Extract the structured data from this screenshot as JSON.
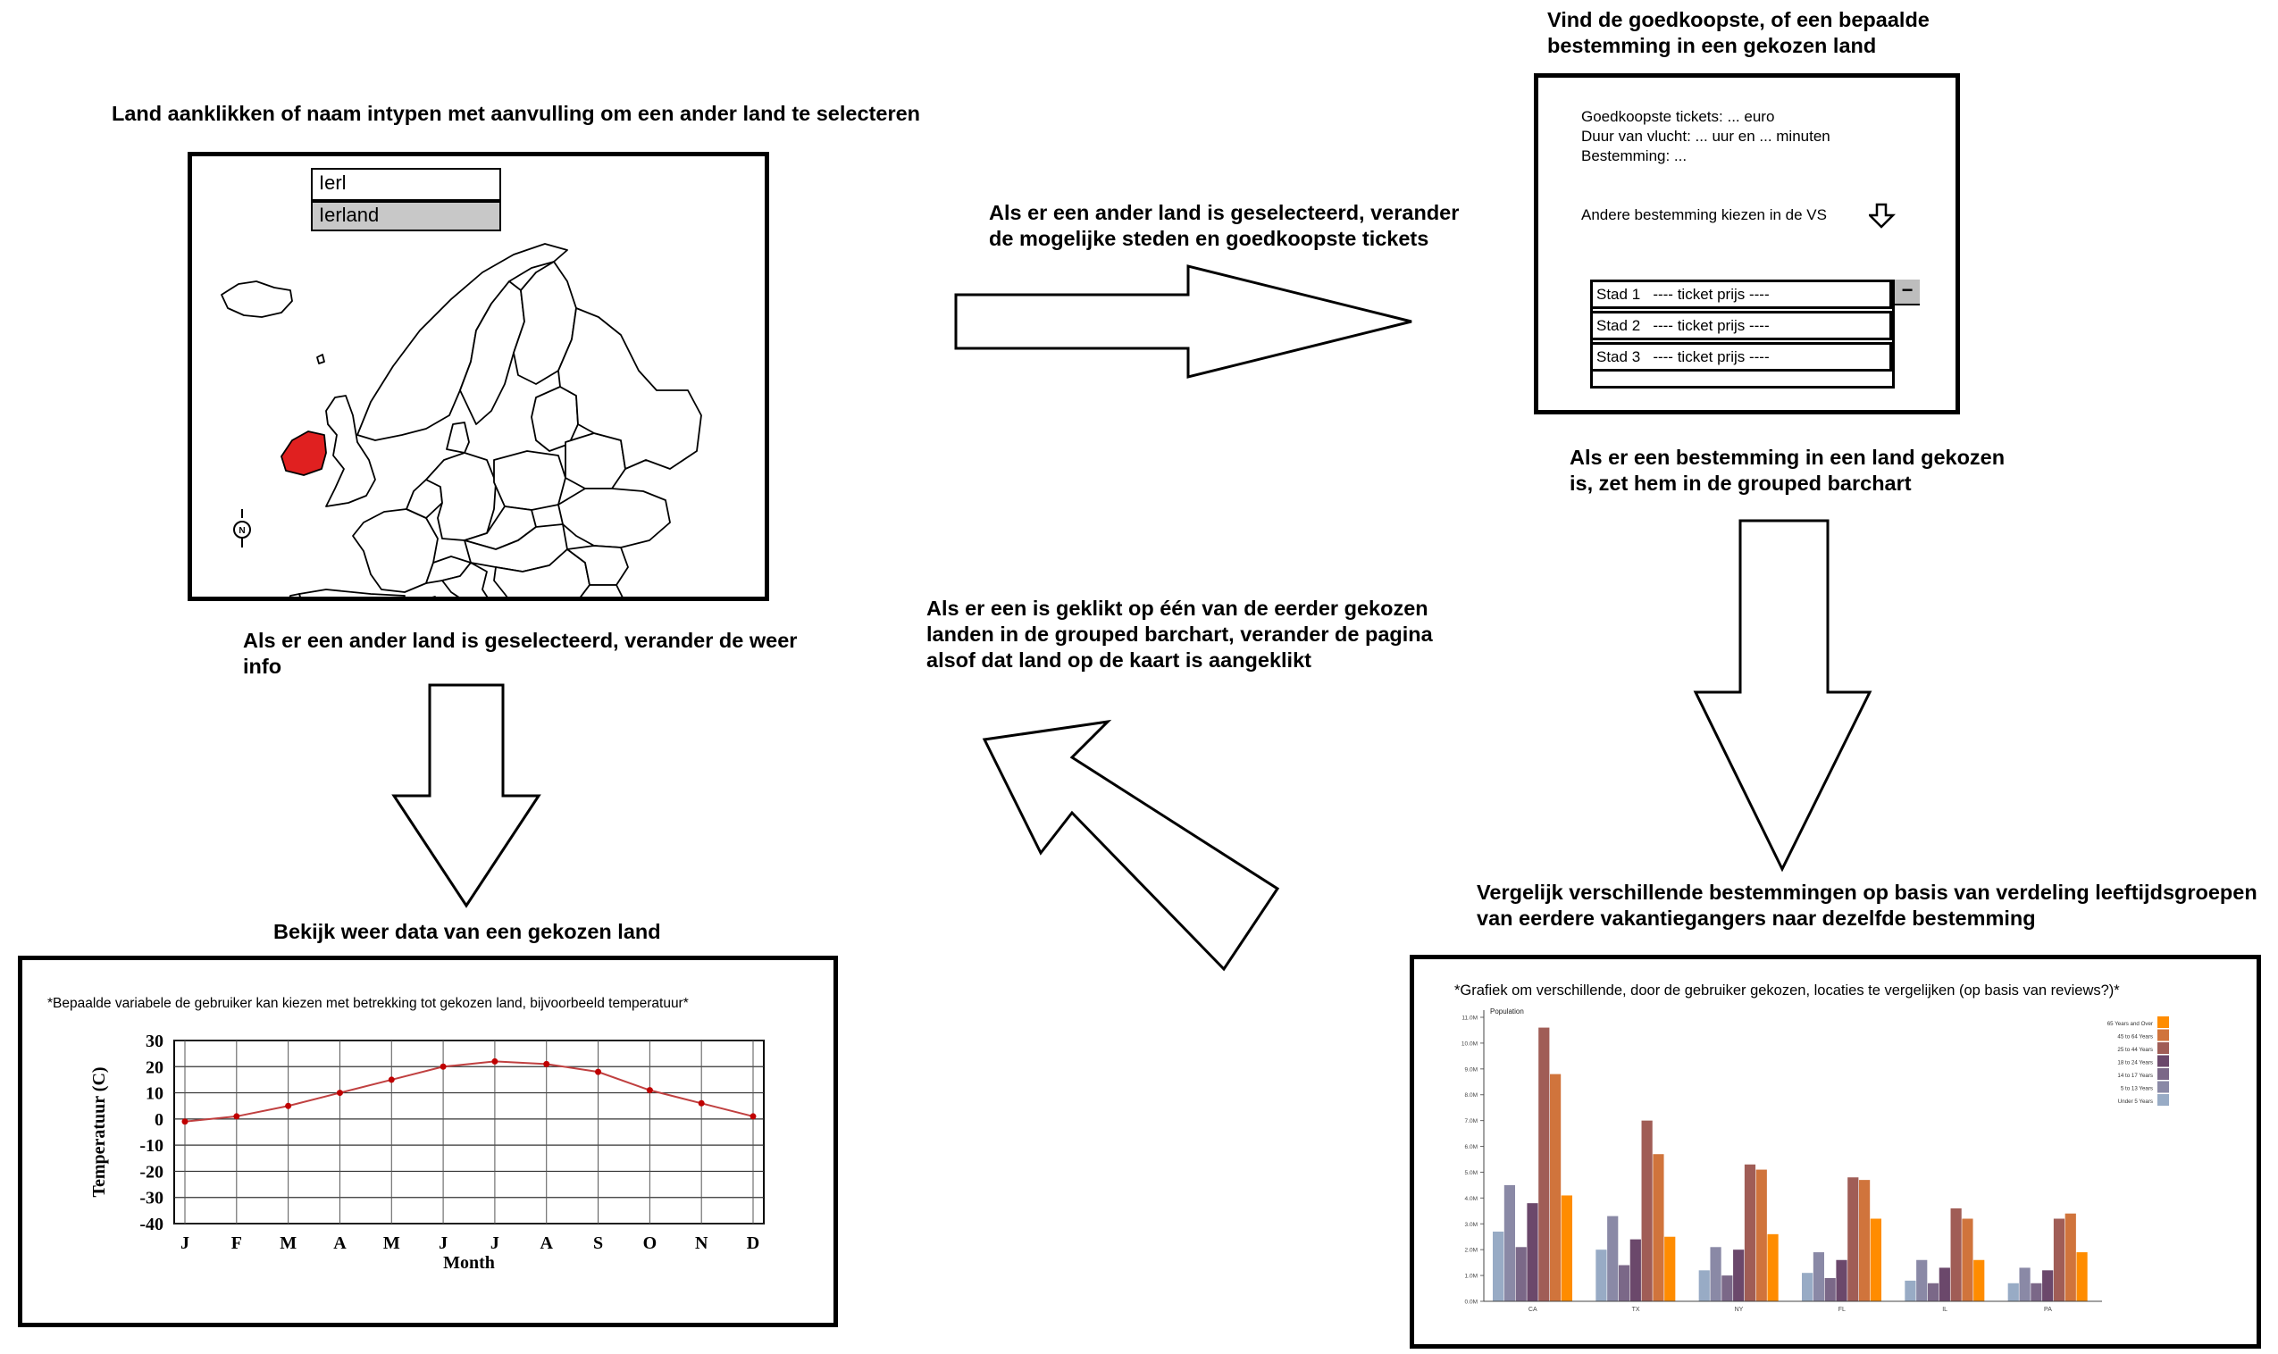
{
  "captions": {
    "map_title": "Land aanklikken of naam intypen met aanvulling om een ander land te selecteren",
    "flow_to_tickets": "Als er een ander land is geselecteerd, verander\nde mogelijke steden en goedkoopste tickets",
    "tickets_title": "Vind de goedkoopste, of een bepaalde\nbestemming in een gekozen land",
    "flow_to_barchart": "Als er een bestemming in een land gekozen\nis, zet hem in de grouped barchart",
    "flow_back": "Als er een is geklikt op één van de eerder gekozen\nlanden in de grouped barchart, verander de pagina\nalsof dat land op de kaart is aangeklikt",
    "flow_to_weather": "Als er een ander land is geselecteerd, verander de weer\ninfo",
    "weather_title": "Bekijk weer data van een gekozen land",
    "compare_title": "Vergelijk verschillende bestemmingen op basis van verdeling leeftijdsgroepen\nvan eerdere vakantiegangers naar dezelfde bestemming"
  },
  "map_panel": {
    "search_value": "Ierl",
    "suggestion": "Ierland",
    "highlight_color": "#e02020",
    "north_label": "N"
  },
  "ticket_panel": {
    "line1": "Goedkoopste tickets: ... euro",
    "line2": "Duur van vlucht: ... uur en ... minuten",
    "line3": "Bestemming: ...",
    "choose_label": "Andere bestemming kiezen in de VS",
    "collapse_symbol": "−",
    "rows": [
      {
        "city": "Stad 1",
        "price": "---- ticket prijs  ----"
      },
      {
        "city": "Stad 2",
        "price": "---- ticket prijs  ----"
      },
      {
        "city": "Stad 3",
        "price": "---- ticket prijs  ----"
      }
    ]
  },
  "weather_panel": {
    "note": "*Bepaalde variabele de gebruiker kan kiezen met betrekking tot gekozen land, bijvoorbeeld temperatuur*"
  },
  "compare_panel": {
    "note": "*Grafiek om verschillende, door de gebruiker gekozen, locaties te vergelijken (op basis van reviews?)*"
  },
  "chart_data": [
    {
      "type": "line",
      "title": "",
      "xlabel": "Month",
      "ylabel": "Temperatuur (C)",
      "x": [
        "J",
        "F",
        "M",
        "A",
        "M",
        "J",
        "J",
        "A",
        "S",
        "O",
        "N",
        "D"
      ],
      "series": [
        {
          "values": [
            -1,
            1,
            5,
            10,
            15,
            20,
            22,
            21,
            18,
            11,
            6,
            1
          ]
        }
      ],
      "ylim": [
        -40,
        30
      ],
      "yticks": [
        30,
        20,
        10,
        0,
        -10,
        -20,
        -30,
        -40
      ],
      "grid": true,
      "line_color": "#c04040"
    },
    {
      "type": "bar",
      "title": "",
      "ylabel": "Population",
      "categories": [
        "CA",
        "TX",
        "NY",
        "FL",
        "IL",
        "PA"
      ],
      "yticks": [
        "0.0M",
        "1.0M",
        "2.0M",
        "3.0M",
        "4.0M",
        "5.0M",
        "6.0M",
        "7.0M",
        "8.0M",
        "9.0M",
        "10.0M",
        "11.0M"
      ],
      "ylim": [
        0,
        11
      ],
      "legend": "top-right",
      "series": [
        {
          "name": "Under 5 Years",
          "color": "#98abc5",
          "values": [
            2.7,
            2.0,
            1.2,
            1.1,
            0.8,
            0.7
          ]
        },
        {
          "name": "5 to 13 Years",
          "color": "#8a89a6",
          "values": [
            4.5,
            3.3,
            2.1,
            1.9,
            1.6,
            1.3
          ]
        },
        {
          "name": "14 to 17 Years",
          "color": "#7b6888",
          "values": [
            2.1,
            1.4,
            1.0,
            0.9,
            0.7,
            0.7
          ]
        },
        {
          "name": "18 to 24 Years",
          "color": "#6b486b",
          "values": [
            3.8,
            2.4,
            2.0,
            1.6,
            1.3,
            1.2
          ]
        },
        {
          "name": "25 to 44 Years",
          "color": "#a05d56",
          "values": [
            10.6,
            7.0,
            5.3,
            4.8,
            3.6,
            3.2
          ]
        },
        {
          "name": "45 to 64 Years",
          "color": "#d0743c",
          "values": [
            8.8,
            5.7,
            5.1,
            4.7,
            3.2,
            3.4
          ]
        },
        {
          "name": "65 Years and Over",
          "color": "#ff8c00",
          "values": [
            4.1,
            2.5,
            2.6,
            3.2,
            1.6,
            1.9
          ]
        }
      ]
    }
  ]
}
